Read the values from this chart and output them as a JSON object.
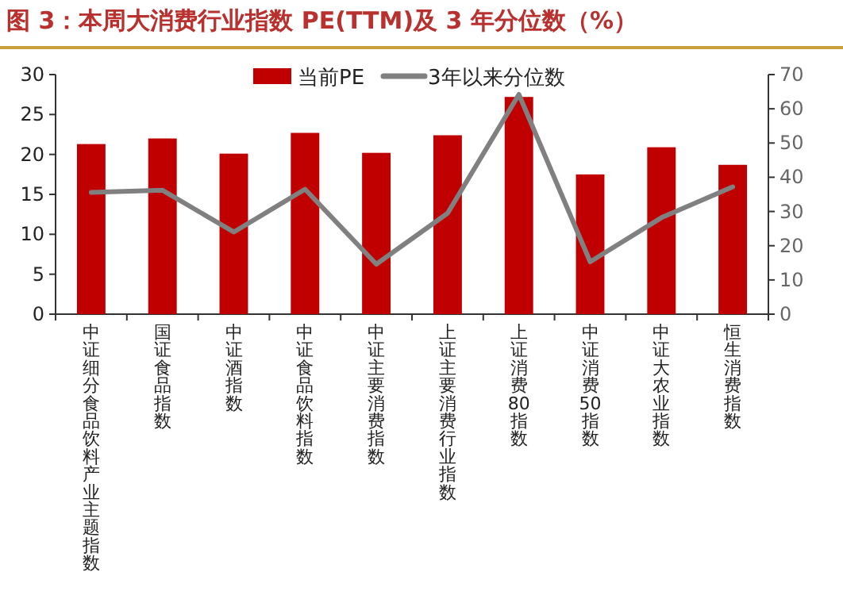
{
  "chart_data": {
    "type": "bar",
    "title": "图 3：本周大消费行业指数 PE(TTM)及 3 年分位数（%）",
    "categories": [
      "中证细分食品饮料产业主题指数",
      "国证食品指数",
      "中证酒指数",
      "中证食品饮料指数",
      "中证主要消费指数",
      "上证主要消费行业指数",
      "上证消费80指数",
      "中证消费50指数",
      "中证大农业指数",
      "恒生消费指数"
    ],
    "series": [
      {
        "name": "当前PE",
        "color": "#c00000",
        "values": [
          21.3,
          22.0,
          20.1,
          22.7,
          20.2,
          22.4,
          27.2,
          17.5,
          20.9,
          18.7
        ]
      },
      {
        "name": "3年以来分位数",
        "type": "line",
        "axis": "y2",
        "color": "#808080",
        "values": [
          35.6,
          36.2,
          24.0,
          36.5,
          14.6,
          29.5,
          64.2,
          15.3,
          28.2,
          37.2
        ]
      }
    ],
    "ylim": [
      0,
      30
    ],
    "yticks": [
      0,
      5,
      10,
      15,
      20,
      25,
      30
    ],
    "y2lim": [
      0,
      70
    ],
    "y2ticks": [
      0,
      10,
      20,
      30,
      40,
      50,
      60,
      70
    ],
    "legend": "top"
  }
}
